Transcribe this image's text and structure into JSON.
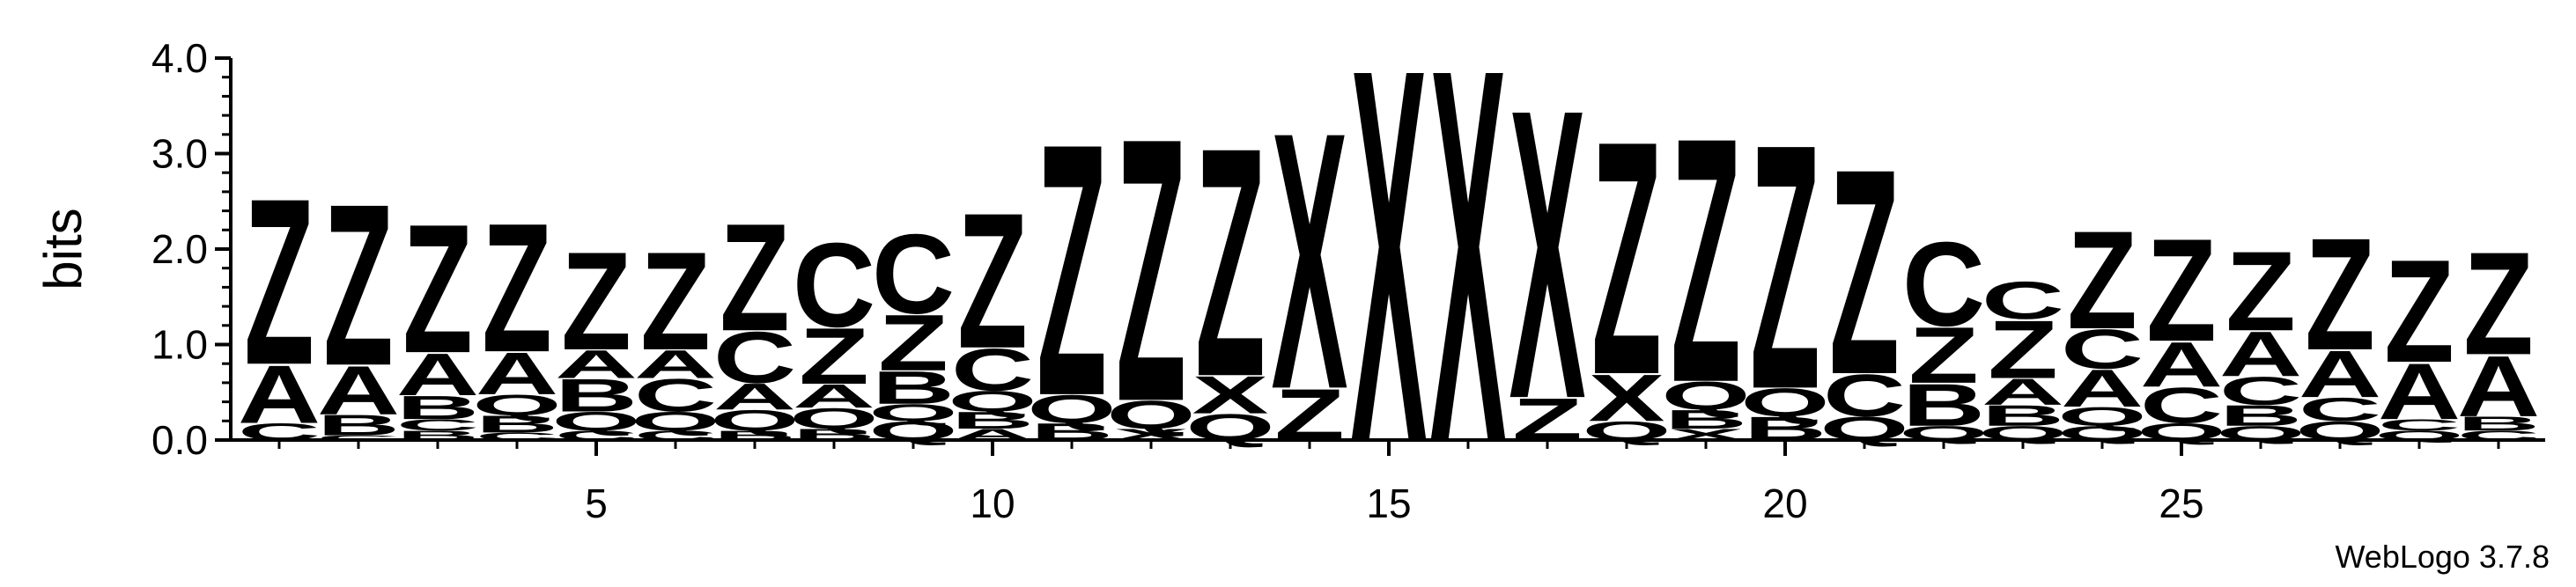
{
  "chart_data": {
    "type": "sequence-logo",
    "ylabel": "bits",
    "ylim": [
      0,
      4.0
    ],
    "y_ticks": [
      "0.0",
      "1.0",
      "2.0",
      "3.0",
      "4.0"
    ],
    "x_ticks": [
      "5",
      "10",
      "15",
      "20",
      "25"
    ],
    "x_tick_values": [
      5,
      10,
      15,
      20,
      25
    ],
    "positions": 29,
    "credit": "WebLogo 3.7.8",
    "colors": {
      "Z": "#ff0000",
      "A": "#ff0000",
      "Q": "#ff0000",
      "B": "#ff9900",
      "C": "#228b22",
      "X": "#0000ff"
    },
    "columns": [
      {
        "position": 1,
        "stack": [
          {
            "letter": "C",
            "bits": 0.18
          },
          {
            "letter": "A",
            "bits": 0.62
          },
          {
            "letter": "Z",
            "bits": 1.78
          }
        ]
      },
      {
        "position": 2,
        "stack": [
          {
            "letter": "C",
            "bits": 0.05
          },
          {
            "letter": "B",
            "bits": 0.22
          },
          {
            "letter": "A",
            "bits": 0.52
          },
          {
            "letter": "Z",
            "bits": 1.73
          }
        ]
      },
      {
        "position": 3,
        "stack": [
          {
            "letter": "B",
            "bits": 0.1
          },
          {
            "letter": "C",
            "bits": 0.12
          },
          {
            "letter": "B",
            "bits": 0.25
          },
          {
            "letter": "A",
            "bits": 0.45
          },
          {
            "letter": "Z",
            "bits": 1.38
          }
        ]
      },
      {
        "position": 4,
        "stack": [
          {
            "letter": "C",
            "bits": 0.08
          },
          {
            "letter": "B",
            "bits": 0.18
          },
          {
            "letter": "Q",
            "bits": 0.22
          },
          {
            "letter": "A",
            "bits": 0.45
          },
          {
            "letter": "Z",
            "bits": 1.38
          }
        ]
      },
      {
        "position": 5,
        "stack": [
          {
            "letter": "C",
            "bits": 0.1
          },
          {
            "letter": "Q",
            "bits": 0.2
          },
          {
            "letter": "B",
            "bits": 0.35
          },
          {
            "letter": "A",
            "bits": 0.3
          },
          {
            "letter": "Z",
            "bits": 1.05
          }
        ]
      },
      {
        "position": 6,
        "stack": [
          {
            "letter": "C",
            "bits": 0.1
          },
          {
            "letter": "Q",
            "bits": 0.2
          },
          {
            "letter": "C",
            "bits": 0.35
          },
          {
            "letter": "A",
            "bits": 0.3
          },
          {
            "letter": "Z",
            "bits": 1.05
          }
        ]
      },
      {
        "position": 7,
        "stack": [
          {
            "letter": "B",
            "bits": 0.1
          },
          {
            "letter": "Q",
            "bits": 0.22
          },
          {
            "letter": "A",
            "bits": 0.28
          },
          {
            "letter": "C",
            "bits": 0.55
          },
          {
            "letter": "Z",
            "bits": 1.15
          }
        ]
      },
      {
        "position": 8,
        "stack": [
          {
            "letter": "B",
            "bits": 0.12
          },
          {
            "letter": "Q",
            "bits": 0.22
          },
          {
            "letter": "A",
            "bits": 0.25
          },
          {
            "letter": "Z",
            "bits": 0.6
          },
          {
            "letter": "C",
            "bits": 0.9
          }
        ]
      },
      {
        "position": 9,
        "stack": [
          {
            "letter": "Q",
            "bits": 0.2
          },
          {
            "letter": "Q",
            "bits": 0.18
          },
          {
            "letter": "B",
            "bits": 0.35
          },
          {
            "letter": "Z",
            "bits": 0.6
          },
          {
            "letter": "C",
            "bits": 0.85
          }
        ]
      },
      {
        "position": 10,
        "stack": [
          {
            "letter": "A",
            "bits": 0.12
          },
          {
            "letter": "B",
            "bits": 0.18
          },
          {
            "letter": "Q",
            "bits": 0.22
          },
          {
            "letter": "C",
            "bits": 0.45
          },
          {
            "letter": "Z",
            "bits": 1.45
          }
        ]
      },
      {
        "position": 11,
        "stack": [
          {
            "letter": "B",
            "bits": 0.18
          },
          {
            "letter": "Q",
            "bits": 0.3
          },
          {
            "letter": "Z",
            "bits": 2.7
          }
        ]
      },
      {
        "position": 12,
        "stack": [
          {
            "letter": "X",
            "bits": 0.12
          },
          {
            "letter": "Q",
            "bits": 0.3
          },
          {
            "letter": "Z",
            "bits": 2.82
          }
        ]
      },
      {
        "position": 13,
        "stack": [
          {
            "letter": "Q",
            "bits": 0.28
          },
          {
            "letter": "X",
            "bits": 0.4
          },
          {
            "letter": "Z",
            "bits": 2.45
          }
        ]
      },
      {
        "position": 14,
        "stack": [
          {
            "letter": "Z",
            "bits": 0.55
          },
          {
            "letter": "X",
            "bits": 2.75
          }
        ]
      },
      {
        "position": 15,
        "stack": [
          {
            "letter": "X",
            "bits": 4.0
          }
        ]
      },
      {
        "position": 16,
        "stack": [
          {
            "letter": "X",
            "bits": 4.0
          }
        ]
      },
      {
        "position": 17,
        "stack": [
          {
            "letter": "Z",
            "bits": 0.45
          },
          {
            "letter": "X",
            "bits": 3.1
          }
        ]
      },
      {
        "position": 18,
        "stack": [
          {
            "letter": "Q",
            "bits": 0.2
          },
          {
            "letter": "X",
            "bits": 0.5
          },
          {
            "letter": "Z",
            "bits": 2.5
          }
        ]
      },
      {
        "position": 19,
        "stack": [
          {
            "letter": "X",
            "bits": 0.12
          },
          {
            "letter": "B",
            "bits": 0.2
          },
          {
            "letter": "Q",
            "bits": 0.3
          },
          {
            "letter": "Z",
            "bits": 2.62
          }
        ]
      },
      {
        "position": 20,
        "stack": [
          {
            "letter": "B",
            "bits": 0.25
          },
          {
            "letter": "Q",
            "bits": 0.3
          },
          {
            "letter": "Z",
            "bits": 2.62
          }
        ]
      },
      {
        "position": 21,
        "stack": [
          {
            "letter": "Q",
            "bits": 0.25
          },
          {
            "letter": "C",
            "bits": 0.45
          },
          {
            "letter": "Z",
            "bits": 2.2
          }
        ]
      },
      {
        "position": 22,
        "stack": [
          {
            "letter": "Q",
            "bits": 0.15
          },
          {
            "letter": "B",
            "bits": 0.45
          },
          {
            "letter": "Z",
            "bits": 0.6
          },
          {
            "letter": "C",
            "bits": 0.9
          }
        ]
      },
      {
        "position": 23,
        "stack": [
          {
            "letter": "Q",
            "bits": 0.15
          },
          {
            "letter": "B",
            "bits": 0.22
          },
          {
            "letter": "A",
            "bits": 0.28
          },
          {
            "letter": "Z",
            "bits": 0.62
          },
          {
            "letter": "C",
            "bits": 0.4
          }
        ]
      },
      {
        "position": 24,
        "stack": [
          {
            "letter": "Q",
            "bits": 0.15
          },
          {
            "letter": "Q",
            "bits": 0.2
          },
          {
            "letter": "A",
            "bits": 0.4
          },
          {
            "letter": "C",
            "bits": 0.42
          },
          {
            "letter": "Z",
            "bits": 1.05
          }
        ]
      },
      {
        "position": 25,
        "stack": [
          {
            "letter": "Q",
            "bits": 0.18
          },
          {
            "letter": "C",
            "bits": 0.38
          },
          {
            "letter": "A",
            "bits": 0.48
          },
          {
            "letter": "Z",
            "bits": 1.1
          }
        ]
      },
      {
        "position": 26,
        "stack": [
          {
            "letter": "Q",
            "bits": 0.15
          },
          {
            "letter": "B",
            "bits": 0.22
          },
          {
            "letter": "C",
            "bits": 0.3
          },
          {
            "letter": "A",
            "bits": 0.48
          },
          {
            "letter": "Z",
            "bits": 0.85
          }
        ]
      },
      {
        "position": 27,
        "stack": [
          {
            "letter": "Q",
            "bits": 0.2
          },
          {
            "letter": "C",
            "bits": 0.25
          },
          {
            "letter": "A",
            "bits": 0.5
          },
          {
            "letter": "Z",
            "bits": 1.2
          }
        ]
      },
      {
        "position": 28,
        "stack": [
          {
            "letter": "Q",
            "bits": 0.1
          },
          {
            "letter": "C",
            "bits": 0.12
          },
          {
            "letter": "A",
            "bits": 0.6
          },
          {
            "letter": "Z",
            "bits": 1.1
          }
        ]
      },
      {
        "position": 29,
        "stack": [
          {
            "letter": "C",
            "bits": 0.1
          },
          {
            "letter": "B",
            "bits": 0.15
          },
          {
            "letter": "A",
            "bits": 0.65
          },
          {
            "letter": "Z",
            "bits": 1.1
          }
        ]
      }
    ]
  }
}
